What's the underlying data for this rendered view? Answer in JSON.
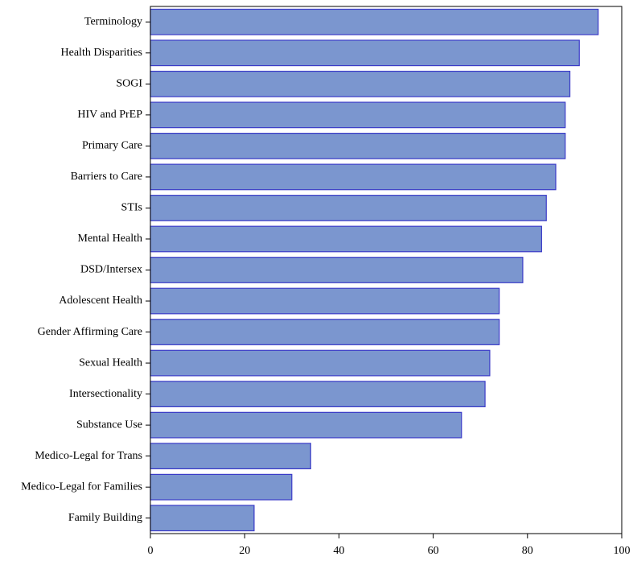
{
  "chart_data": {
    "type": "bar",
    "orientation": "horizontal",
    "categories": [
      "Terminology",
      "Health Disparities",
      "SOGI",
      "HIV and PrEP",
      "Primary Care",
      "Barriers to Care",
      "STIs",
      "Mental Health",
      "DSD/Intersex",
      "Adolescent Health",
      "Gender Affirming Care",
      "Sexual Health",
      "Intersectionality",
      "Substance Use",
      "Medico-Legal for Trans",
      "Medico-Legal for Families",
      "Family Building"
    ],
    "values": [
      95,
      91,
      89,
      88,
      88,
      86,
      84,
      83,
      79,
      74,
      74,
      72,
      71,
      66,
      34,
      30,
      22
    ],
    "color": "#7b96cf",
    "edgecolor": "#3b3bc8",
    "xlim": [
      0,
      100
    ],
    "xticks": [
      0,
      20,
      40,
      60,
      80,
      100
    ],
    "grid": false
  }
}
